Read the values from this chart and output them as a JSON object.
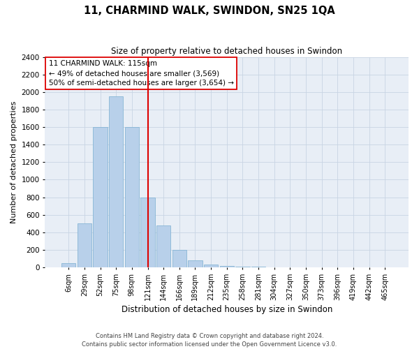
{
  "title": "11, CHARMIND WALK, SWINDON, SN25 1QA",
  "subtitle": "Size of property relative to detached houses in Swindon",
  "xlabel": "Distribution of detached houses by size in Swindon",
  "ylabel": "Number of detached properties",
  "categories": [
    "6sqm",
    "29sqm",
    "52sqm",
    "75sqm",
    "98sqm",
    "121sqm",
    "144sqm",
    "166sqm",
    "189sqm",
    "212sqm",
    "235sqm",
    "258sqm",
    "281sqm",
    "304sqm",
    "327sqm",
    "350sqm",
    "373sqm",
    "396sqm",
    "419sqm",
    "442sqm",
    "465sqm"
  ],
  "values": [
    50,
    500,
    1600,
    1950,
    1600,
    800,
    475,
    200,
    80,
    30,
    15,
    10,
    5,
    3,
    2,
    0,
    0,
    0,
    0,
    0,
    0
  ],
  "bar_color": "#b8d0ea",
  "bar_edgecolor": "#7aaed0",
  "vline_x_idx": 5,
  "vline_color": "#dd0000",
  "annotation_text": "11 CHARMIND WALK: 115sqm\n← 49% of detached houses are smaller (3,569)\n50% of semi-detached houses are larger (3,654) →",
  "ylim": [
    0,
    2400
  ],
  "yticks": [
    0,
    200,
    400,
    600,
    800,
    1000,
    1200,
    1400,
    1600,
    1800,
    2000,
    2200,
    2400
  ],
  "grid_color": "#c8d4e4",
  "bg_color": "#e8eef6",
  "footer1": "Contains HM Land Registry data © Crown copyright and database right 2024.",
  "footer2": "Contains public sector information licensed under the Open Government Licence v3.0."
}
